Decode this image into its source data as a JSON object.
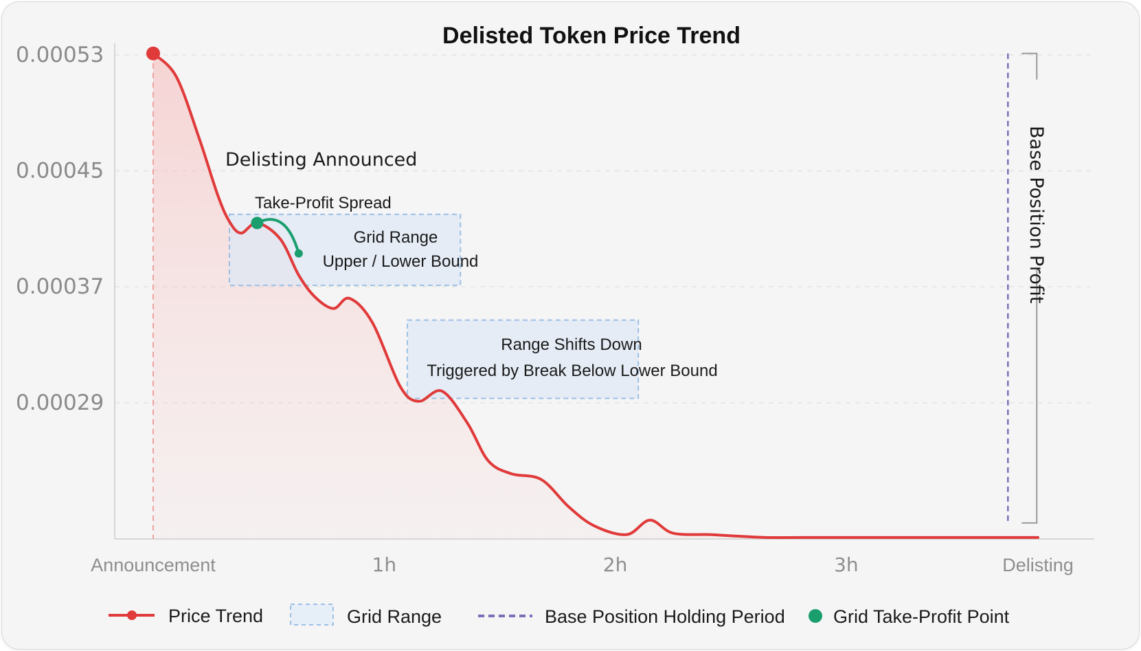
{
  "chart_data": {
    "type": "line",
    "title": "Delisted Token Price Trend",
    "xlabel": "",
    "ylabel": "",
    "x_ticks": [
      "Announcement",
      "1h",
      "2h",
      "3h",
      "Delisting"
    ],
    "xlim": [
      0,
      3.83
    ],
    "y_ticks": [
      "0.00053",
      "0.00045",
      "0.00037",
      "0.00029"
    ],
    "ylim": [
      0.000196,
      0.000538
    ],
    "grid": true,
    "legend_position": "bottom",
    "series": [
      {
        "name": "Price Trend",
        "color": "#e03a3a",
        "x": [
          0,
          0.1,
          0.2,
          0.28,
          0.33,
          0.38,
          0.45,
          0.55,
          0.63,
          0.7,
          0.78,
          0.85,
          0.95,
          1.07,
          1.15,
          1.25,
          1.36,
          1.45,
          1.55,
          1.68,
          1.8,
          1.91,
          2.05,
          2.15,
          2.25,
          2.41,
          2.52,
          2.65,
          2.8,
          2.95,
          3.1,
          3.3,
          3.5,
          3.83
        ],
        "y": [
          0.000531,
          0.000515,
          0.000472,
          0.000433,
          0.000415,
          0.000407,
          0.000414,
          0.000403,
          0.000378,
          0.000363,
          0.000355,
          0.000362,
          0.000345,
          0.000301,
          0.000291,
          0.000298,
          0.000276,
          0.00025,
          0.000241,
          0.000237,
          0.000218,
          0.000205,
          0.000199,
          0.000209,
          0.0002,
          0.000199,
          0.000198,
          0.000197,
          0.000197,
          0.000197,
          0.000197,
          0.000197,
          0.000197,
          0.000197
        ]
      },
      {
        "name": "Grid Take-Profit Point",
        "color": "#1a9e6e",
        "x": [
          0.45,
          0.55,
          0.63
        ],
        "y": [
          0.000414,
          0.00041,
          0.000393
        ]
      }
    ],
    "grid_ranges": [
      {
        "name": "Grid Range",
        "x": [
          0.33,
          1.33
        ],
        "y": [
          0.000371,
          0.00042
        ]
      },
      {
        "name": "Range Shifts Down",
        "x": [
          1.1,
          2.1
        ],
        "y": [
          0.000293,
          0.000347
        ]
      }
    ],
    "base_position_period": {
      "x": 3.7,
      "y": [
        0.000207,
        0.000531
      ]
    },
    "annotations": [
      {
        "id": "delisting",
        "text": "Delisting Announced"
      },
      {
        "id": "spread",
        "text": "Take-Profit Spread"
      },
      {
        "id": "grid1_line1",
        "text": "Grid Range"
      },
      {
        "id": "grid1_line2",
        "text": "Upper / Lower Bound"
      },
      {
        "id": "grid2_line1",
        "text": "Range Shifts Down"
      },
      {
        "id": "grid2_line2",
        "text": "Triggered by Break Below Lower Bound"
      },
      {
        "id": "base_profit",
        "text": "Base Position Profit"
      }
    ],
    "legend": [
      {
        "label": "Price Trend",
        "kind": "line-dot",
        "color": "#e03a3a"
      },
      {
        "label": "Grid Range",
        "kind": "box",
        "color": "#9bbfe6"
      },
      {
        "label": "Base Position Holding Period",
        "kind": "dashed",
        "color": "#7a6fb8"
      },
      {
        "label": "Grid Take-Profit Point",
        "kind": "dot",
        "color": "#1a9e6e"
      }
    ]
  }
}
